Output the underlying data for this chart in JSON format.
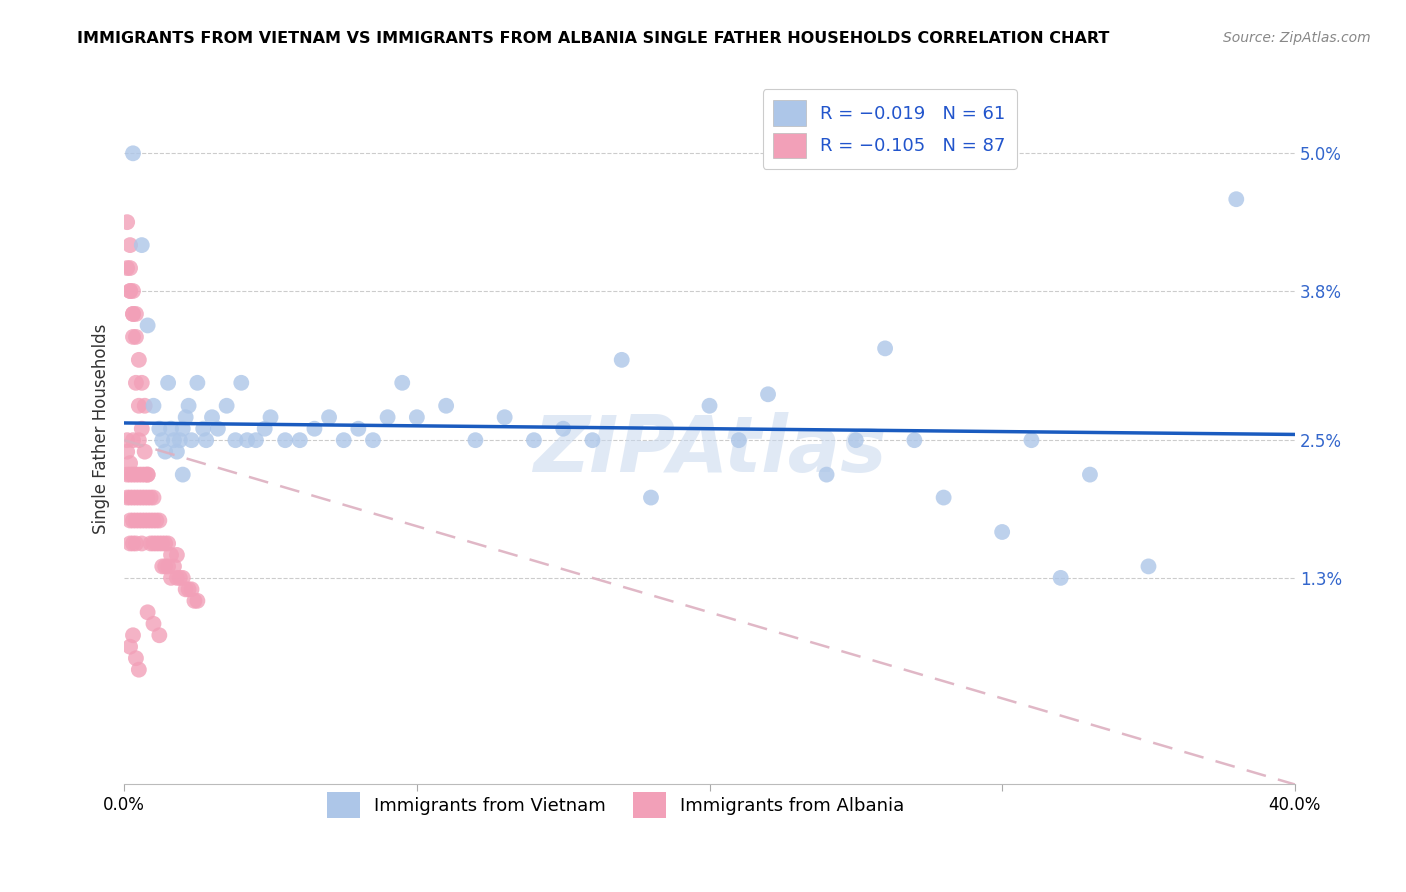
{
  "title": "IMMIGRANTS FROM VIETNAM VS IMMIGRANTS FROM ALBANIA SINGLE FATHER HOUSEHOLDS CORRELATION CHART",
  "source": "Source: ZipAtlas.com",
  "ylabel": "Single Father Households",
  "yticks": [
    "1.3%",
    "2.5%",
    "3.8%",
    "5.0%"
  ],
  "ytick_vals": [
    0.013,
    0.025,
    0.038,
    0.05
  ],
  "xlim": [
    0.0,
    0.4
  ],
  "ylim": [
    -0.005,
    0.057
  ],
  "R_vietnam": -0.019,
  "N_vietnam": 61,
  "R_albania": -0.105,
  "N_albania": 87,
  "color_vietnam": "#adc6e8",
  "color_albania": "#f2a0b8",
  "trendline_vietnam_color": "#1a5bbf",
  "trendline_albania_color": "#e8a0b8",
  "watermark": "ZIPAtlas",
  "vietnam_x": [
    0.003,
    0.006,
    0.008,
    0.01,
    0.012,
    0.013,
    0.014,
    0.015,
    0.016,
    0.017,
    0.018,
    0.019,
    0.02,
    0.021,
    0.022,
    0.023,
    0.025,
    0.027,
    0.028,
    0.03,
    0.032,
    0.035,
    0.038,
    0.04,
    0.042,
    0.045,
    0.048,
    0.05,
    0.055,
    0.06,
    0.065,
    0.07,
    0.075,
    0.08,
    0.085,
    0.09,
    0.095,
    0.1,
    0.11,
    0.12,
    0.13,
    0.14,
    0.15,
    0.16,
    0.17,
    0.18,
    0.2,
    0.21,
    0.22,
    0.24,
    0.25,
    0.26,
    0.27,
    0.28,
    0.3,
    0.31,
    0.32,
    0.33,
    0.35,
    0.38,
    0.02
  ],
  "vietnam_y": [
    0.05,
    0.042,
    0.035,
    0.028,
    0.026,
    0.025,
    0.024,
    0.03,
    0.026,
    0.025,
    0.024,
    0.025,
    0.026,
    0.027,
    0.028,
    0.025,
    0.03,
    0.026,
    0.025,
    0.027,
    0.026,
    0.028,
    0.025,
    0.03,
    0.025,
    0.025,
    0.026,
    0.027,
    0.025,
    0.025,
    0.026,
    0.027,
    0.025,
    0.026,
    0.025,
    0.027,
    0.03,
    0.027,
    0.028,
    0.025,
    0.027,
    0.025,
    0.026,
    0.025,
    0.032,
    0.02,
    0.028,
    0.025,
    0.029,
    0.022,
    0.025,
    0.033,
    0.025,
    0.02,
    0.017,
    0.025,
    0.013,
    0.022,
    0.014,
    0.046,
    0.022
  ],
  "albania_x": [
    0.001,
    0.001,
    0.001,
    0.001,
    0.002,
    0.002,
    0.002,
    0.002,
    0.002,
    0.003,
    0.003,
    0.003,
    0.003,
    0.003,
    0.004,
    0.004,
    0.004,
    0.004,
    0.005,
    0.005,
    0.005,
    0.005,
    0.006,
    0.006,
    0.006,
    0.006,
    0.007,
    0.007,
    0.007,
    0.008,
    0.008,
    0.008,
    0.009,
    0.009,
    0.009,
    0.01,
    0.01,
    0.01,
    0.011,
    0.011,
    0.012,
    0.012,
    0.013,
    0.013,
    0.014,
    0.014,
    0.015,
    0.015,
    0.016,
    0.016,
    0.017,
    0.018,
    0.018,
    0.019,
    0.02,
    0.021,
    0.022,
    0.023,
    0.024,
    0.025,
    0.001,
    0.002,
    0.003,
    0.004,
    0.005,
    0.006,
    0.007,
    0.002,
    0.003,
    0.004,
    0.001,
    0.002,
    0.002,
    0.003,
    0.003,
    0.004,
    0.005,
    0.006,
    0.007,
    0.008,
    0.002,
    0.003,
    0.004,
    0.005,
    0.008,
    0.01,
    0.012
  ],
  "albania_y": [
    0.025,
    0.024,
    0.022,
    0.02,
    0.023,
    0.022,
    0.02,
    0.018,
    0.016,
    0.025,
    0.022,
    0.02,
    0.018,
    0.016,
    0.022,
    0.02,
    0.018,
    0.016,
    0.025,
    0.022,
    0.02,
    0.018,
    0.022,
    0.02,
    0.018,
    0.016,
    0.022,
    0.02,
    0.018,
    0.022,
    0.02,
    0.018,
    0.02,
    0.018,
    0.016,
    0.02,
    0.018,
    0.016,
    0.018,
    0.016,
    0.018,
    0.016,
    0.016,
    0.014,
    0.016,
    0.014,
    0.016,
    0.014,
    0.015,
    0.013,
    0.014,
    0.015,
    0.013,
    0.013,
    0.013,
    0.012,
    0.012,
    0.012,
    0.011,
    0.011,
    0.04,
    0.038,
    0.036,
    0.034,
    0.032,
    0.03,
    0.028,
    0.04,
    0.038,
    0.036,
    0.044,
    0.042,
    0.038,
    0.036,
    0.034,
    0.03,
    0.028,
    0.026,
    0.024,
    0.022,
    0.007,
    0.008,
    0.006,
    0.005,
    0.01,
    0.009,
    0.008
  ]
}
